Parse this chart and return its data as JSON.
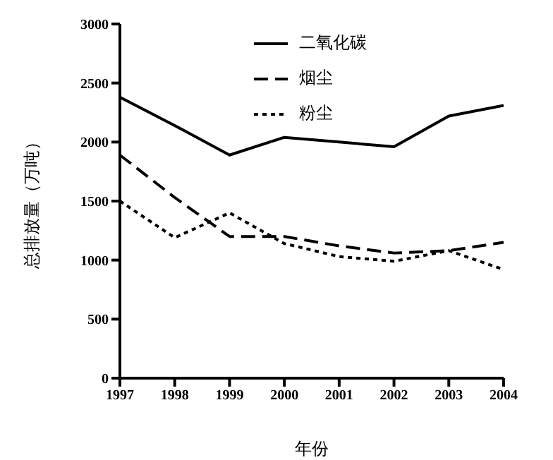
{
  "chart_data": {
    "type": "line",
    "xlabel": "年份",
    "ylabel": "总排放量（万吨）",
    "x": [
      1997,
      1998,
      1999,
      2000,
      2001,
      2002,
      2003,
      2004
    ],
    "xlim": [
      1997,
      2004
    ],
    "xticks": [
      1997,
      1998,
      1999,
      2000,
      2001,
      2002,
      2003,
      2004
    ],
    "ylim": [
      0,
      3000
    ],
    "yticks": [
      0,
      500,
      1000,
      1500,
      2000,
      2500,
      3000
    ],
    "grid": false,
    "legend": "top right",
    "marker": "none",
    "series": [
      {
        "name": "二氧化碳",
        "color": "#000000",
        "line_style": "solid",
        "values": [
          2380,
          2140,
          1890,
          2040,
          2000,
          1960,
          2220,
          2310
        ]
      },
      {
        "name": "烟尘",
        "color": "#000000",
        "line_style": "dashed",
        "values": [
          1890,
          1530,
          1200,
          1200,
          1120,
          1060,
          1080,
          1150
        ]
      },
      {
        "name": "粉尘",
        "color": "#000000",
        "line_style": "dotted",
        "values": [
          1500,
          1190,
          1400,
          1140,
          1030,
          990,
          1080,
          920
        ]
      }
    ]
  }
}
